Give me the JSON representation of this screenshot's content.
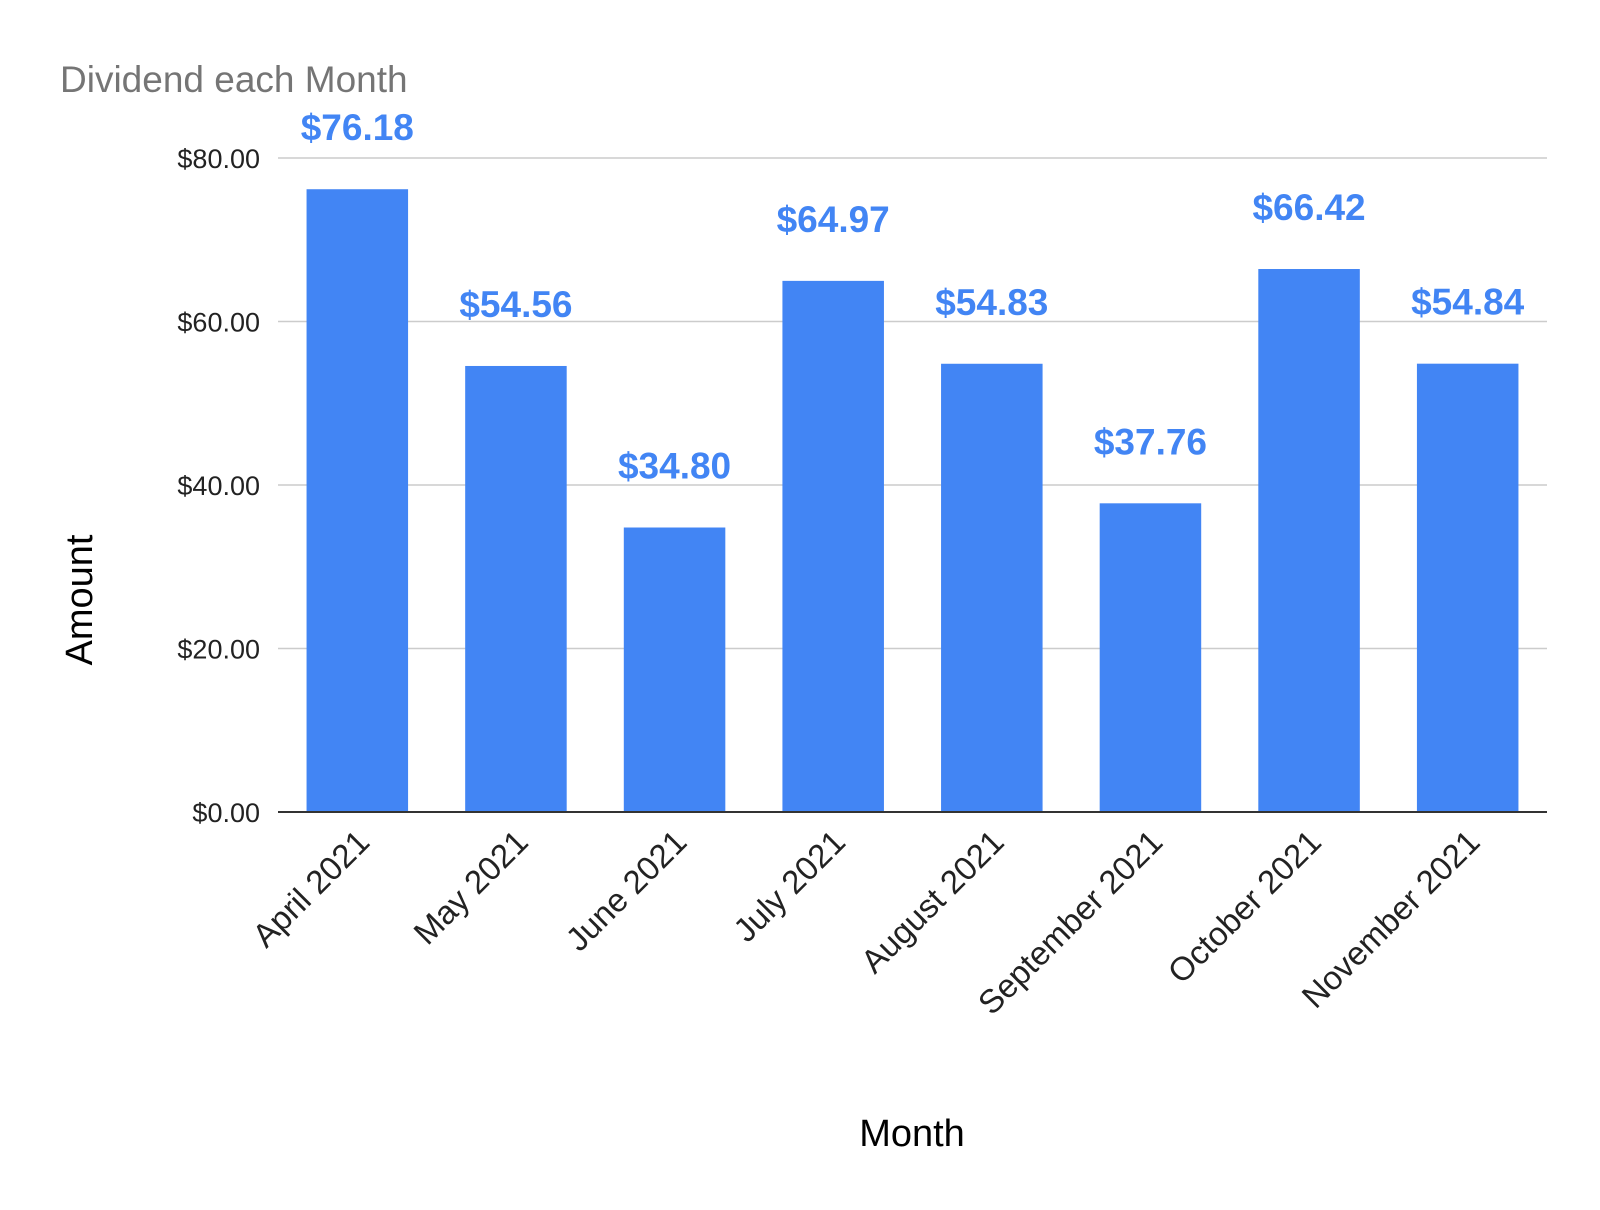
{
  "chart_data": {
    "type": "bar",
    "title": "Dividend each Month",
    "xlabel": "Month",
    "ylabel": "Amount",
    "categories": [
      "April 2021",
      "May 2021",
      "June 2021",
      "July 2021",
      "August 2021",
      "September 2021",
      "October 2021",
      "November 2021"
    ],
    "values": [
      76.18,
      54.56,
      34.8,
      64.97,
      54.83,
      37.76,
      66.42,
      54.84
    ],
    "data_labels": [
      "$76.18",
      "$54.56",
      "$34.80",
      "$64.97",
      "$54.83",
      "$37.76",
      "$66.42",
      "$54.84"
    ],
    "ylim": [
      0,
      80
    ],
    "yticks": [
      0,
      20,
      40,
      60,
      80
    ],
    "ytick_labels": [
      "$0.00",
      "$20.00",
      "$40.00",
      "$60.00",
      "$80.00"
    ],
    "grid": true,
    "legend": "none",
    "colors": {
      "bar": "#4285f4",
      "label": "#4285f4",
      "grid": "#cccccc",
      "axis": "#333333"
    }
  }
}
